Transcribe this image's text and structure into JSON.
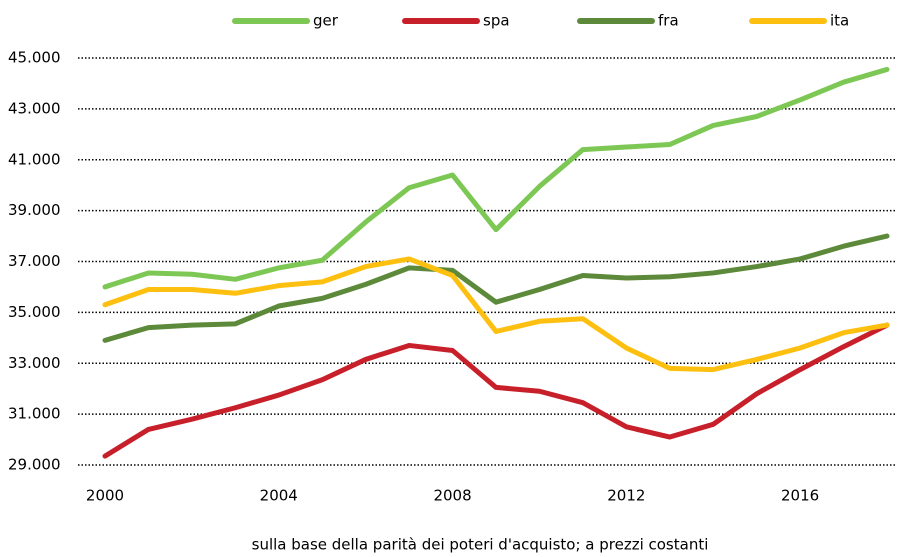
{
  "chart_data": {
    "type": "line",
    "xlabel": "sulla base della parità dei poteri d'acquisto; a prezzi costanti",
    "x": [
      2000,
      2001,
      2002,
      2003,
      2004,
      2005,
      2006,
      2007,
      2008,
      2009,
      2010,
      2011,
      2012,
      2013,
      2014,
      2015,
      2016,
      2017,
      2018
    ],
    "series": [
      {
        "name": "ger",
        "color": "#7dc855",
        "values": [
          36000,
          36550,
          36500,
          36300,
          36750,
          37050,
          38550,
          39900,
          40400,
          38250,
          39950,
          41400,
          41500,
          41600,
          42350,
          42700,
          43350,
          44050,
          44550
        ]
      },
      {
        "name": "spa",
        "color": "#c8202a",
        "values": [
          29350,
          30400,
          30800,
          31250,
          31750,
          32350,
          33150,
          33700,
          33500,
          32050,
          31900,
          31450,
          30500,
          30100,
          30600,
          31800,
          32750,
          33650,
          34500
        ]
      },
      {
        "name": "fra",
        "color": "#5d8a3a",
        "values": [
          33900,
          34400,
          34500,
          34550,
          35250,
          35550,
          36100,
          36750,
          36650,
          35400,
          35900,
          36450,
          36350,
          36400,
          36550,
          36800,
          37100,
          37600,
          38000
        ]
      },
      {
        "name": "ita",
        "color": "#fdc010",
        "values": [
          35300,
          35900,
          35900,
          35750,
          36050,
          36200,
          36800,
          37100,
          36450,
          34250,
          34650,
          34750,
          33600,
          32800,
          32750,
          33150,
          33600,
          34200,
          34500
        ]
      }
    ],
    "xlim": [
      2000,
      2018
    ],
    "xticks": [
      2000,
      2004,
      2008,
      2012,
      2016
    ],
    "ylim": [
      29000,
      45000
    ],
    "yticks": [
      {
        "value": 29000,
        "label": "29.000"
      },
      {
        "value": 31000,
        "label": "31.000"
      },
      {
        "value": 33000,
        "label": "33.000"
      },
      {
        "value": 35000,
        "label": "35.000"
      },
      {
        "value": 37000,
        "label": "37.000"
      },
      {
        "value": 39000,
        "label": "39.000"
      },
      {
        "value": 41000,
        "label": "41.000"
      },
      {
        "value": 43000,
        "label": "43.000"
      },
      {
        "value": 45000,
        "label": "45.000"
      }
    ],
    "grid": true,
    "legend": "top"
  }
}
